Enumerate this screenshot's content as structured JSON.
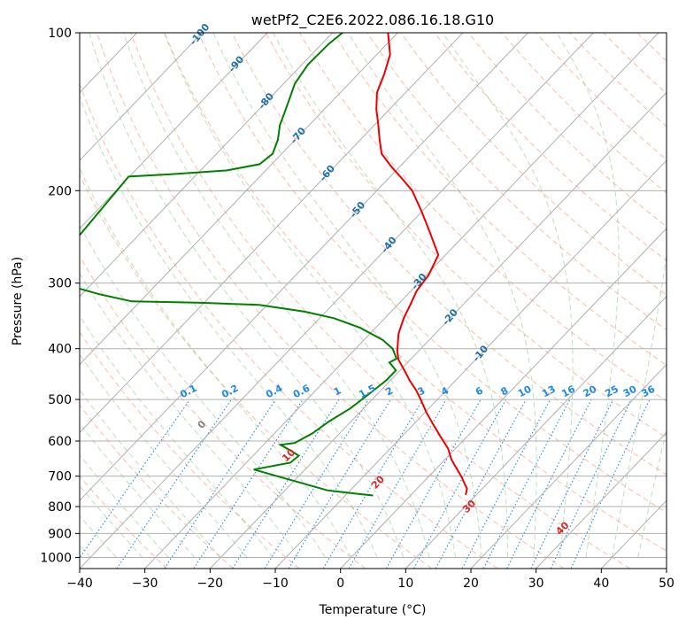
{
  "chart_data": {
    "type": "line",
    "title": "wetPf2_C2E6.2022.086.16.18.G10",
    "xlabel": "Temperature (°C)",
    "ylabel": "Pressure (hPa)",
    "xlim": [
      -40,
      50
    ],
    "ylim": [
      1050,
      100
    ],
    "y_scale": "log",
    "grid": true,
    "x_ticks": [
      -40,
      -30,
      -20,
      -10,
      0,
      10,
      20,
      30,
      40,
      50
    ],
    "x_tick_labels": [
      "−40",
      "−30",
      "−20",
      "−10",
      "0",
      "10",
      "20",
      "30",
      "40",
      "50"
    ],
    "y_ticks": [
      100,
      200,
      300,
      400,
      500,
      600,
      700,
      800,
      900,
      1000
    ],
    "y_tick_labels": [
      "100",
      "200",
      "300",
      "400",
      "500",
      "600",
      "700",
      "800",
      "900",
      "1000"
    ],
    "series": [
      {
        "color": "#ee0000",
        "points": [
          [
            7.3,
            100
          ],
          [
            7.6,
            110
          ],
          [
            6.7,
            120
          ],
          [
            5.6,
            130
          ],
          [
            5.5,
            140
          ],
          [
            5.8,
            150
          ],
          [
            6.0,
            160
          ],
          [
            6.3,
            170
          ],
          [
            7.8,
            180
          ],
          [
            9.5,
            190
          ],
          [
            11.0,
            200
          ],
          [
            12.5,
            220
          ],
          [
            13.7,
            240
          ],
          [
            15.0,
            265
          ],
          [
            13.5,
            290
          ],
          [
            11.7,
            310
          ],
          [
            10.7,
            330
          ],
          [
            9.7,
            350
          ],
          [
            8.9,
            375
          ],
          [
            8.7,
            405
          ],
          [
            8.9,
            420
          ],
          [
            9.8,
            440
          ],
          [
            10.6,
            460
          ],
          [
            11.6,
            480
          ],
          [
            12.3,
            500
          ],
          [
            13.2,
            530
          ],
          [
            14.3,
            560
          ],
          [
            15.4,
            590
          ],
          [
            16.5,
            620
          ],
          [
            17.0,
            650
          ],
          [
            17.6,
            670
          ],
          [
            18.5,
            700
          ],
          [
            19.4,
            740
          ],
          [
            19.2,
            760
          ]
        ]
      },
      {
        "color": "#008000",
        "points": [
          [
            0.3,
            100
          ],
          [
            -1.8,
            105
          ],
          [
            -5.0,
            115
          ],
          [
            -7.0,
            125
          ],
          [
            -8.4,
            140
          ],
          [
            -9.3,
            150
          ],
          [
            -9.6,
            160
          ],
          [
            -10.4,
            170
          ],
          [
            -12.4,
            178
          ],
          [
            -17.5,
            183
          ],
          [
            -26.0,
            186
          ],
          [
            -32.5,
            188
          ],
          [
            -40.0,
            243
          ]
        ]
      },
      {
        "color": "#008000",
        "points": [
          [
            -41.0,
            305
          ],
          [
            -37.0,
            315
          ],
          [
            -32.0,
            325
          ],
          [
            -22.0,
            327
          ],
          [
            -12.5,
            330
          ],
          [
            -5.5,
            340
          ],
          [
            -1.0,
            350
          ],
          [
            3.0,
            365
          ],
          [
            6.5,
            385
          ],
          [
            8.0,
            400
          ],
          [
            8.6,
            418
          ],
          [
            7.5,
            425
          ],
          [
            8.5,
            440
          ],
          [
            7.0,
            460
          ],
          [
            4.2,
            490
          ],
          [
            1.5,
            520
          ],
          [
            -1.7,
            550
          ],
          [
            -4.3,
            580
          ],
          [
            -7.0,
            605
          ],
          [
            -9.2,
            610
          ],
          [
            -7.7,
            625
          ],
          [
            -6.4,
            640
          ],
          [
            -7.7,
            660
          ],
          [
            -13.3,
            680
          ],
          [
            -9.7,
            700
          ],
          [
            -2.0,
            745
          ],
          [
            2.0,
            755
          ],
          [
            5.0,
            762
          ]
        ]
      }
    ],
    "isotherm_labels": [
      "-100",
      "-90",
      "-80",
      "-70",
      "-60",
      "-50",
      "-40",
      "-30",
      "-20",
      "-10"
    ],
    "mixing_ratio_labels": [
      "0.1",
      "0.2",
      "0.4",
      "0.6",
      "1",
      "1.5",
      "2",
      "3",
      "4",
      "6",
      "8",
      "10",
      "13",
      "16",
      "20",
      "25",
      "30",
      "36"
    ],
    "dry_adiabat_labels": [
      "0",
      "10",
      "20",
      "30",
      "40"
    ],
    "colors": {
      "temperature": "#ee0000",
      "dewpoint": "#008000",
      "isotherm_label": "#1f6fa8",
      "mixing_ratio": "#1e88e5",
      "dry_adiabat_label": "#d62728",
      "grid": "#b0b0b0"
    }
  }
}
